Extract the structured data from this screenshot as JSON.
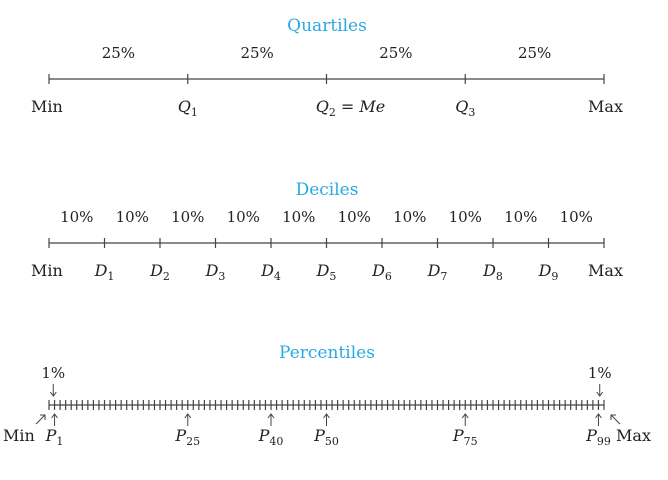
{
  "colors": {
    "title": "#29a9e1",
    "text": "#222222",
    "axis": "#444444"
  },
  "quartiles": {
    "title": "Quartiles",
    "segments": [
      "25%",
      "25%",
      "25%",
      "25%"
    ],
    "labels": [
      {
        "text": "Min",
        "sym": "",
        "sub": ""
      },
      {
        "text": "",
        "sym": "Q",
        "sub": "1"
      },
      {
        "text": "",
        "sym": "Q",
        "sub": "2",
        "suffix": " = ",
        "suffix_it": "Me"
      },
      {
        "text": "",
        "sym": "Q",
        "sub": "3"
      },
      {
        "text": "Max",
        "sym": "",
        "sub": ""
      }
    ]
  },
  "deciles": {
    "title": "Deciles",
    "segments": [
      "10%",
      "10%",
      "10%",
      "10%",
      "10%",
      "10%",
      "10%",
      "10%",
      "10%",
      "10%"
    ],
    "labels": [
      {
        "text": "Min",
        "sym": "",
        "sub": ""
      },
      {
        "text": "",
        "sym": "D",
        "sub": "1"
      },
      {
        "text": "",
        "sym": "D",
        "sub": "2"
      },
      {
        "text": "",
        "sym": "D",
        "sub": "3"
      },
      {
        "text": "",
        "sym": "D",
        "sub": "4"
      },
      {
        "text": "",
        "sym": "D",
        "sub": "5"
      },
      {
        "text": "",
        "sym": "D",
        "sub": "6"
      },
      {
        "text": "",
        "sym": "D",
        "sub": "7"
      },
      {
        "text": "",
        "sym": "D",
        "sub": "8"
      },
      {
        "text": "",
        "sym": "D",
        "sub": "9"
      },
      {
        "text": "Max",
        "sym": "",
        "sub": ""
      }
    ]
  },
  "percentiles": {
    "title": "Percentiles",
    "left_pct": "1%",
    "right_pct": "1%",
    "tick_count": 100,
    "min_label": "Min",
    "max_label": "Max",
    "markers": [
      {
        "sym": "P",
        "sub": "1",
        "index": 1
      },
      {
        "sym": "P",
        "sub": "25",
        "index": 25
      },
      {
        "sym": "P",
        "sub": "40",
        "index": 40
      },
      {
        "sym": "P",
        "sub": "50",
        "index": 50
      },
      {
        "sym": "P",
        "sub": "75",
        "index": 75
      },
      {
        "sym": "P",
        "sub": "99",
        "index": 99
      }
    ]
  }
}
